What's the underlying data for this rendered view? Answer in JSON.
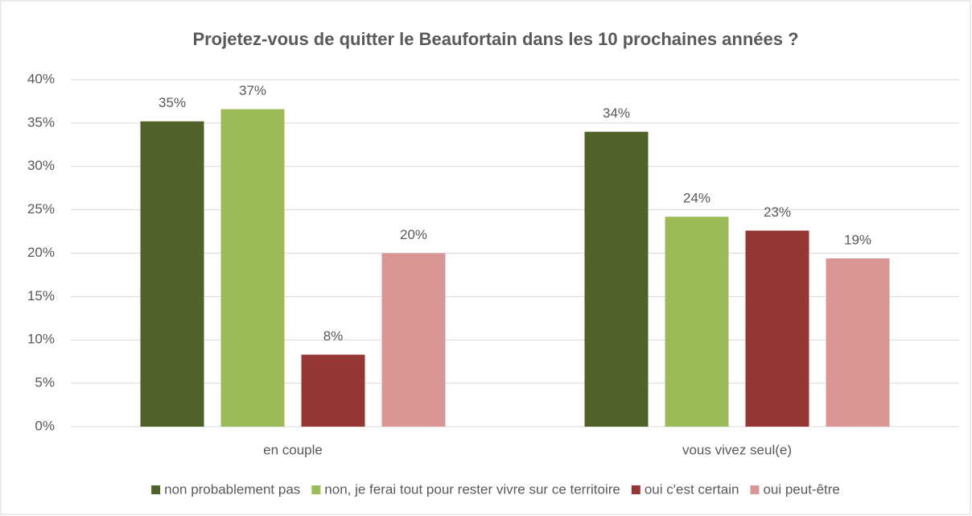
{
  "chart_data": {
    "type": "bar",
    "title": "Projetez-vous de quitter le Beaufortain dans les 10 prochaines années ?",
    "categories": [
      "en couple",
      "vous vivez seul(e)"
    ],
    "series": [
      {
        "name": "non probablement pas",
        "color": "#4f6228",
        "values": [
          35.2,
          34.0
        ],
        "value_labels": [
          "35%",
          "34%"
        ]
      },
      {
        "name": "non, je ferai tout pour rester vivre sur ce territoire",
        "color": "#9bbb59",
        "values": [
          36.6,
          24.2
        ],
        "value_labels": [
          "37%",
          "24%"
        ]
      },
      {
        "name": "oui c'est certain",
        "color": "#953735",
        "values": [
          8.3,
          22.6
        ],
        "value_labels": [
          "8%",
          "23%"
        ]
      },
      {
        "name": "oui peut-être",
        "color": "#d99694",
        "values": [
          20.0,
          19.4
        ],
        "value_labels": [
          "20%",
          "19%"
        ]
      }
    ],
    "ylim": [
      0,
      40
    ],
    "yticks": [
      {
        "value": 0,
        "label": "0%"
      },
      {
        "value": 5,
        "label": "5%"
      },
      {
        "value": 10,
        "label": "10%"
      },
      {
        "value": 15,
        "label": "15%"
      },
      {
        "value": 20,
        "label": "20%"
      },
      {
        "value": 25,
        "label": "25%"
      },
      {
        "value": 30,
        "label": "30%"
      },
      {
        "value": 35,
        "label": "35%"
      },
      {
        "value": 40,
        "label": "40%"
      }
    ],
    "grid": true,
    "legend": "bottom"
  }
}
